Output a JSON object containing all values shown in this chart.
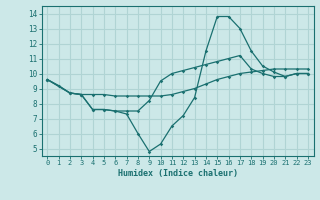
{
  "xlabel": "Humidex (Indice chaleur)",
  "background_color": "#cce8e8",
  "line_color": "#1a7070",
  "grid_color": "#b0d4d4",
  "xlim": [
    -0.5,
    23.5
  ],
  "ylim": [
    4.5,
    14.5
  ],
  "xticks": [
    0,
    1,
    2,
    3,
    4,
    5,
    6,
    7,
    8,
    9,
    10,
    11,
    12,
    13,
    14,
    15,
    16,
    17,
    18,
    19,
    20,
    21,
    22,
    23
  ],
  "yticks": [
    5,
    6,
    7,
    8,
    9,
    10,
    11,
    12,
    13,
    14
  ],
  "line1_x": [
    0,
    1,
    2,
    3,
    4,
    5,
    6,
    7,
    8,
    9,
    10,
    11,
    12,
    13,
    14,
    15,
    16,
    17,
    18,
    19,
    20,
    21,
    22,
    23
  ],
  "line1_y": [
    9.6,
    9.2,
    8.7,
    8.6,
    8.6,
    8.6,
    8.5,
    8.5,
    8.5,
    8.5,
    8.5,
    8.6,
    8.8,
    9.0,
    9.3,
    9.6,
    9.8,
    10.0,
    10.1,
    10.2,
    10.3,
    10.3,
    10.3,
    10.3
  ],
  "line2_x": [
    0,
    2,
    3,
    4,
    5,
    6,
    7,
    8,
    9,
    10,
    11,
    12,
    13,
    14,
    15,
    16,
    17,
    18,
    19,
    20,
    21,
    22,
    23
  ],
  "line2_y": [
    9.6,
    8.7,
    8.6,
    7.6,
    7.6,
    7.5,
    7.3,
    6.0,
    4.8,
    5.3,
    6.5,
    7.2,
    8.4,
    11.5,
    13.8,
    13.8,
    13.0,
    11.5,
    10.5,
    10.1,
    9.8,
    10.0,
    10.0
  ],
  "line3_x": [
    0,
    2,
    3,
    4,
    5,
    6,
    7,
    8,
    9,
    10,
    11,
    12,
    13,
    14,
    15,
    16,
    17,
    18,
    19,
    20,
    21,
    22,
    23
  ],
  "line3_y": [
    9.6,
    8.7,
    8.6,
    7.6,
    7.6,
    7.5,
    7.5,
    7.5,
    8.2,
    9.5,
    10.0,
    10.2,
    10.4,
    10.6,
    10.8,
    11.0,
    11.2,
    10.3,
    10.0,
    9.8,
    9.8,
    10.0,
    10.0
  ]
}
